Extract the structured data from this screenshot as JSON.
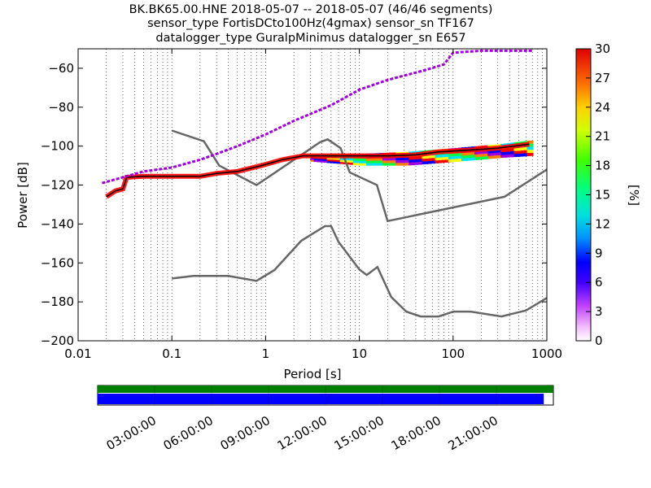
{
  "chart_data": {
    "type": "heatmap",
    "title_lines": [
      "BK.BK65.00.HNE   2018-05-07 -- 2018-05-07  (46/46 segments)",
      "sensor_type FortisDCto100Hz(4gmax) sensor_sn TF167",
      "datalogger_type GuralpMinimus datalogger_sn E657"
    ],
    "xlabel": "Period [s]",
    "ylabel": "Power [dB]",
    "x_scale": "log",
    "xlim": [
      0.01,
      1000
    ],
    "ylim": [
      -200,
      -50
    ],
    "x_ticks": [
      {
        "value": 0.01,
        "label": "0.01"
      },
      {
        "value": 0.1,
        "label": "0.1"
      },
      {
        "value": 1,
        "label": "1"
      },
      {
        "value": 10,
        "label": "10"
      },
      {
        "value": 100,
        "label": "100"
      },
      {
        "value": 1000,
        "label": "1000"
      }
    ],
    "y_ticks": [
      {
        "value": -60,
        "label": "−60"
      },
      {
        "value": -80,
        "label": "−80"
      },
      {
        "value": -100,
        "label": "−100"
      },
      {
        "value": -120,
        "label": "−120"
      },
      {
        "value": -140,
        "label": "−140"
      },
      {
        "value": -160,
        "label": "−160"
      },
      {
        "value": -180,
        "label": "−180"
      },
      {
        "value": -200,
        "label": "−200"
      }
    ],
    "grid": "vertical dotted",
    "colorbar": {
      "label": "[%]",
      "range": [
        0,
        30
      ],
      "ticks": [
        {
          "value": 0,
          "label": "0"
        },
        {
          "value": 3,
          "label": "3"
        },
        {
          "value": 6,
          "label": "6"
        },
        {
          "value": 9,
          "label": "9"
        },
        {
          "value": 12,
          "label": "12"
        },
        {
          "value": 15,
          "label": "15"
        },
        {
          "value": 18,
          "label": "18"
        },
        {
          "value": 21,
          "label": "21"
        },
        {
          "value": 24,
          "label": "24"
        },
        {
          "value": 27,
          "label": "27"
        },
        {
          "value": 30,
          "label": "30"
        }
      ]
    },
    "reference_curves": {
      "color": "#666666",
      "new_high_noise_model": [
        [
          0.1,
          -92
        ],
        [
          0.22,
          -97.5
        ],
        [
          0.32,
          -110
        ],
        [
          0.8,
          -120
        ],
        [
          3.8,
          -98
        ],
        [
          4.6,
          -96.5
        ],
        [
          6.3,
          -101
        ],
        [
          7.9,
          -113.5
        ],
        [
          15.4,
          -120
        ],
        [
          20,
          -138.5
        ],
        [
          354,
          -126
        ],
        [
          1000,
          -112
        ]
      ],
      "new_low_noise_model": [
        [
          0.1,
          -168
        ],
        [
          0.17,
          -166.7
        ],
        [
          0.4,
          -166.7
        ],
        [
          0.8,
          -169.2
        ],
        [
          1.24,
          -163.7
        ],
        [
          2.4,
          -148.6
        ],
        [
          4.3,
          -141.1
        ],
        [
          5,
          -141.1
        ],
        [
          6,
          -149.2
        ],
        [
          10,
          -163.4
        ],
        [
          12,
          -166.2
        ],
        [
          15.6,
          -162.1
        ],
        [
          21.9,
          -177.5
        ],
        [
          31.6,
          -185
        ],
        [
          45,
          -187.5
        ],
        [
          70,
          -187.5
        ],
        [
          101,
          -185
        ],
        [
          154,
          -185
        ],
        [
          328,
          -187.5
        ],
        [
          600,
          -184.4
        ],
        [
          1000,
          -178
        ]
      ]
    },
    "series": [
      {
        "name": "",
        "description_color": "mode",
        "color": "#000000",
        "points": [
          [
            0.02,
            -126
          ],
          [
            0.025,
            -123
          ],
          [
            0.03,
            -122
          ],
          [
            0.033,
            -116
          ],
          [
            0.05,
            -115.5
          ],
          [
            0.2,
            -115.5
          ],
          [
            0.3,
            -114
          ],
          [
            0.5,
            -113
          ],
          [
            0.9,
            -110
          ],
          [
            1.5,
            -107
          ],
          [
            2.5,
            -105
          ],
          [
            5,
            -105
          ],
          [
            20,
            -105
          ],
          [
            40,
            -104.5
          ],
          [
            70,
            -103
          ],
          [
            150,
            -102
          ],
          [
            300,
            -101
          ],
          [
            650,
            -99
          ]
        ]
      },
      {
        "name": "",
        "color": "#a000e0",
        "points": [
          [
            0.018,
            -119
          ],
          [
            0.03,
            -116
          ],
          [
            0.05,
            -113
          ],
          [
            0.1,
            -111
          ],
          [
            0.2,
            -107
          ],
          [
            0.3,
            -104
          ],
          [
            0.5,
            -100
          ],
          [
            1,
            -94
          ],
          [
            2,
            -87
          ],
          [
            5,
            -79
          ],
          [
            10,
            -71
          ],
          [
            20,
            -66
          ],
          [
            50,
            -61
          ],
          [
            80,
            -58
          ],
          [
            100,
            -52
          ],
          [
            200,
            -51
          ],
          [
            700,
            -51
          ]
        ]
      }
    ],
    "density_spread": [
      {
        "x": 3,
        "y_low": -108,
        "y_high": -104
      },
      {
        "x": 10,
        "y_low": -110,
        "y_high": -104
      },
      {
        "x": 30,
        "y_low": -110,
        "y_high": -103
      },
      {
        "x": 100,
        "y_low": -108,
        "y_high": -101
      },
      {
        "x": 300,
        "y_low": -106,
        "y_high": -99
      },
      {
        "x": 650,
        "y_low": -105,
        "y_high": -97
      }
    ]
  },
  "timeline": {
    "labels": [
      "03:00:00",
      "06:00:00",
      "09:00:00",
      "12:00:00",
      "15:00:00",
      "18:00:00",
      "21:00:00"
    ],
    "data_color": "#0000ff",
    "coverage_color": "#008000",
    "coverage_fraction": 0.979
  }
}
